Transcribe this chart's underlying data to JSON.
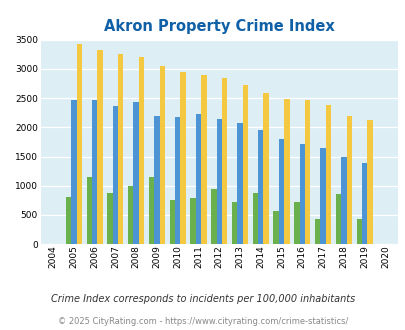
{
  "title": "Akron Property Crime Index",
  "years": [
    "2004",
    "2005",
    "2006",
    "2007",
    "2008",
    "2009",
    "2010",
    "2011",
    "2012",
    "2013",
    "2014",
    "2015",
    "2016",
    "2017",
    "2018",
    "2019",
    "2020"
  ],
  "akron": [
    0,
    800,
    1150,
    880,
    1000,
    1150,
    750,
    790,
    940,
    720,
    880,
    570,
    720,
    430,
    860,
    430,
    0
  ],
  "pennsylvania": [
    0,
    2460,
    2470,
    2370,
    2440,
    2200,
    2180,
    2230,
    2150,
    2070,
    1950,
    1800,
    1720,
    1640,
    1500,
    1390,
    0
  ],
  "national": [
    0,
    3420,
    3330,
    3250,
    3200,
    3040,
    2950,
    2900,
    2850,
    2720,
    2590,
    2490,
    2470,
    2380,
    2200,
    2120,
    0
  ],
  "akron_color": "#6ab04c",
  "pennsylvania_color": "#4d94d4",
  "national_color": "#f5c842",
  "bg_color": "#ddeef5",
  "ylim": [
    0,
    3500
  ],
  "yticks": [
    0,
    500,
    1000,
    1500,
    2000,
    2500,
    3000,
    3500
  ],
  "footnote1": "Crime Index corresponds to incidents per 100,000 inhabitants",
  "footnote2": "© 2025 CityRating.com - https://www.cityrating.com/crime-statistics/",
  "title_color": "#1060a8",
  "footnote1_color": "#333333",
  "footnote2_color": "#888888"
}
